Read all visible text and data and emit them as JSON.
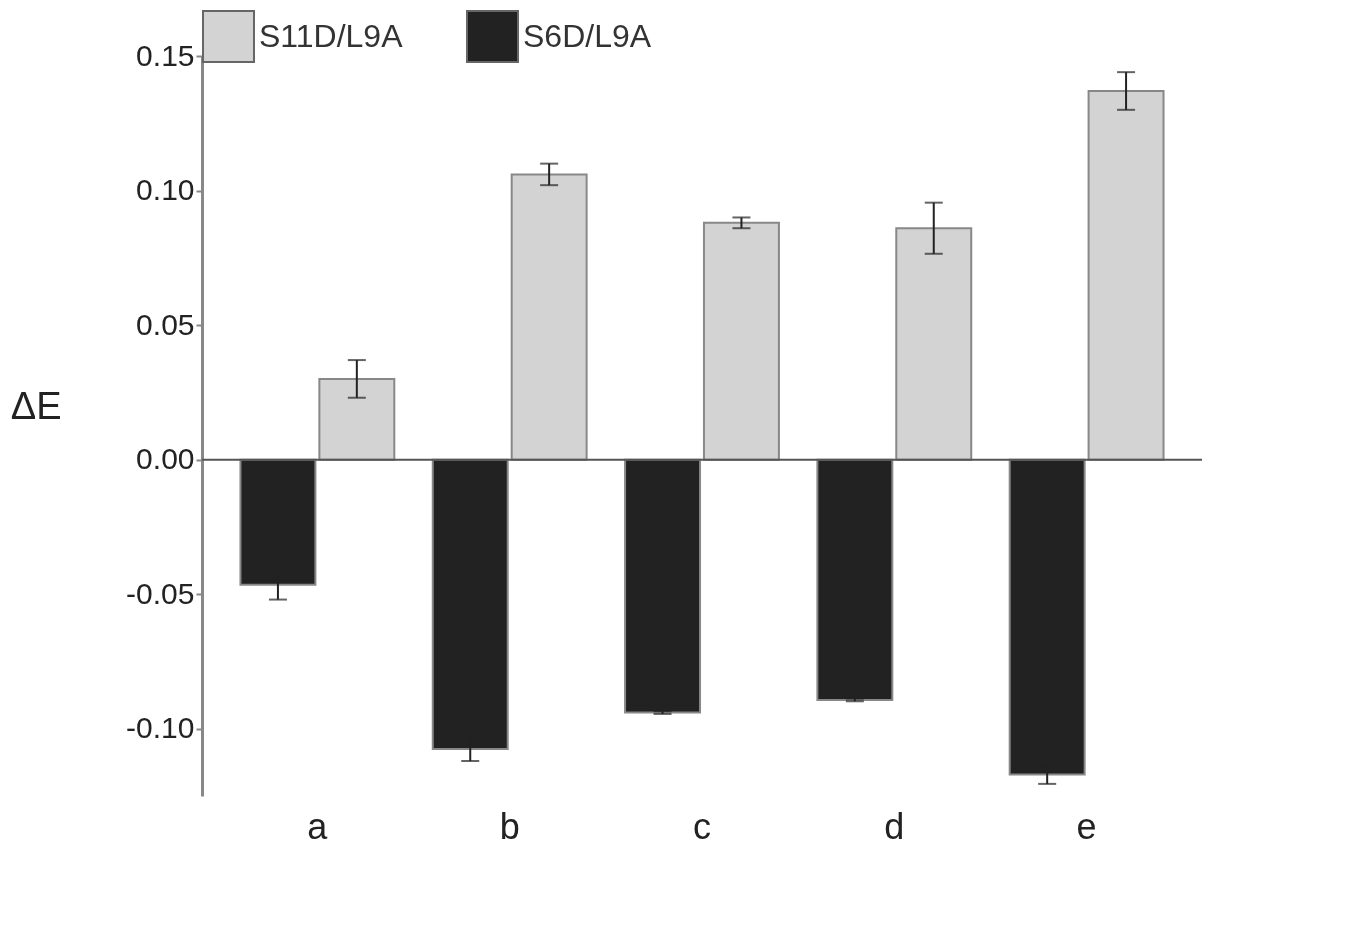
{
  "chart_data": {
    "type": "bar",
    "ylabel": "ΔE",
    "categories": [
      "a",
      "b",
      "c",
      "d",
      "e"
    ],
    "series": [
      {
        "name": "S11D/L9A",
        "color": "#d3d3d3",
        "values": [
          0.03,
          0.106,
          0.088,
          0.086,
          0.137
        ],
        "errors": [
          0.007,
          0.004,
          0.002,
          0.0095,
          0.007
        ]
      },
      {
        "name": "S6D/L9A",
        "color": "#222222",
        "values": [
          -0.0465,
          -0.1075,
          -0.094,
          -0.0893,
          -0.117
        ],
        "errors": [
          0.0055,
          0.0045,
          0.0005,
          0.0005,
          0.0035
        ]
      }
    ],
    "ylim": [
      -0.125,
      0.15
    ],
    "yticks": [
      {
        "value": -0.1,
        "label": "-0.10"
      },
      {
        "value": -0.05,
        "label": "-0.05"
      },
      {
        "value": 0,
        "label": "0.00"
      },
      {
        "value": 0.05,
        "label": "0.05"
      },
      {
        "value": 0.1,
        "label": "0.10"
      },
      {
        "value": 0.15,
        "label": "0.15"
      }
    ],
    "ref_lines": [
      {
        "axis": "y",
        "value": 0
      }
    ],
    "grid": false,
    "legend": "top"
  }
}
